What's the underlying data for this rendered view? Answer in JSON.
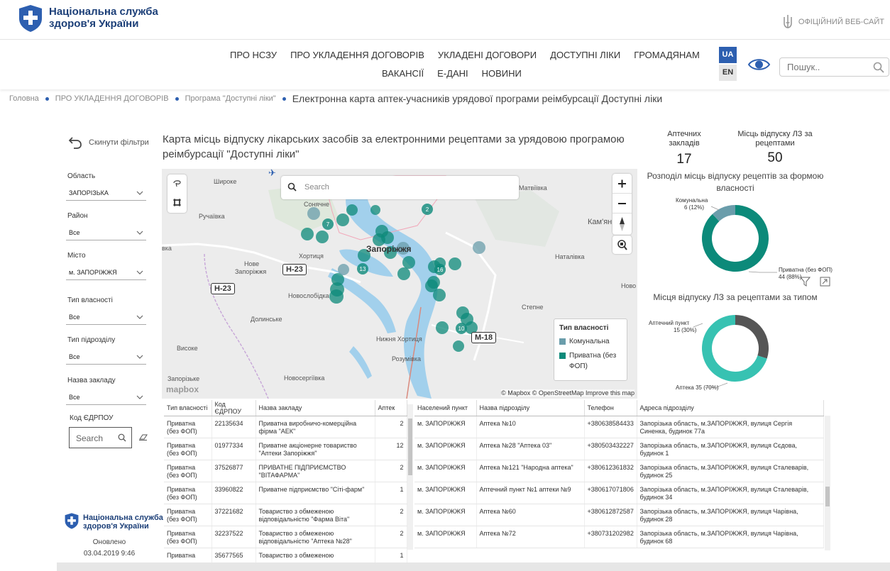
{
  "header": {
    "logo_line1": "Національна служба",
    "logo_line2": "здоров'я України",
    "official_site": "ОФІЦІЙНИЙ ВЕБ-САЙТ"
  },
  "nav": {
    "row1": [
      "ПРО НСЗУ",
      "ПРО УКЛАДЕННЯ ДОГОВОРІВ",
      "УКЛАДЕНІ ДОГОВОРИ",
      "ДОСТУПНІ ЛІКИ",
      "ГРОМАДЯНАМ"
    ],
    "row2": [
      "ВАКАНСІЇ",
      "Е-ДАНІ",
      "НОВИНИ"
    ],
    "lang_ua": "UA",
    "lang_en": "EN",
    "search_placeholder": "Пошук.."
  },
  "breadcrumb": {
    "home": "Головна",
    "section": "ПРО УКЛАДЕННЯ ДОГОВОРІВ",
    "program": "Програма \"Доступні ліки\"",
    "current": "Електронна карта аптек-учасників урядової програми реімбурсації Доступні ліки"
  },
  "filters": {
    "reset": "Скинути фільтри",
    "oblast_label": "Область",
    "oblast_value": "ЗАПОРІЗЬКА",
    "rayon_label": "Район",
    "rayon_value": "Все",
    "misto_label": "Місто",
    "misto_value": "м. ЗАПОРІЖЖЯ",
    "vlasnist_label": "Тип власності",
    "vlasnist_value": "Все",
    "pidrozdil_label": "Тип підрозділу",
    "pidrozdil_value": "Все",
    "zaklad_label": "Назва закладу",
    "zaklad_value": "Все",
    "edrpou_label": "Код ЄДРПОУ",
    "edrpou_placeholder": "Search"
  },
  "footer_left": {
    "logo_line1": "Національна служба",
    "logo_line2": "здоров'я України",
    "updated_label": "Оновлено",
    "updated_value": "03.04.2019 9:46"
  },
  "map": {
    "title": "Карта місць відпуску лікарських засобів за електронними рецептами за урядовою програмою реімбурсації \"Доступні ліки\"",
    "search_placeholder": "Search",
    "labels": {
      "shyroke": "Широке",
      "ruchaivka": "Ручаївка",
      "soniachne": "Сонячне",
      "matviivka": "Матвіївка",
      "kamyan": "Кам'ян",
      "khortytsia": "Хортиця",
      "nove_zaporizhzhia_1": "Нове",
      "nove_zaporizhzhia_2": "Запоріжжя",
      "zaporizhzhia_city": "Запоріжжя",
      "natalivka": "Наталівка",
      "novoslobidka": "Новослобідка",
      "dolynske": "Долинське",
      "stepne": "Степне",
      "nyzhnia_khortytsia": "Нижня Хортиця",
      "vysoke": "Високе",
      "rozumivka": "Розумівка",
      "zaporizke": "Запорізьке",
      "novoserhiivka": "Новосергіївка",
      "kva": "вка",
      "novo": "Ново"
    },
    "roads": [
      "Н-23",
      "Н-23",
      "М-18"
    ],
    "clusters": [
      "2",
      "7",
      "13",
      "16",
      "10"
    ],
    "attribution": "© Mapbox © OpenStreetMap  Improve this map",
    "mapbox_logo": "mapbox",
    "legend_title": "Тип власності",
    "legend_items": [
      "Комунальна",
      "Приватна (без ФОП)"
    ],
    "colors": {
      "communal": "#6a9dab",
      "private": "#0c8a7a",
      "water": "#a2d0ec",
      "land": "#ececec"
    }
  },
  "stats": {
    "pharmacies_label": "Аптечних закладів",
    "pharmacies_value": "17",
    "points_label": "Місць відпуску ЛЗ за рецептами",
    "points_value": "50"
  },
  "chart_data": [
    {
      "type": "pie",
      "title": "Розподіл місць відпуску рецептів за формою власності",
      "categories": [
        "Комунальна",
        "Приватна (без ФОП)"
      ],
      "values": [
        6,
        44
      ],
      "percents": [
        "12%",
        "88%"
      ],
      "labels": [
        "6 (12%)",
        "44 (88%)"
      ],
      "colors": [
        "#6a9dab",
        "#0c8a7a"
      ]
    },
    {
      "type": "pie",
      "title": "Місця відпуску ЛЗ за рецептами за типом",
      "categories": [
        "Аптечний пункт",
        "Аптека"
      ],
      "values": [
        15,
        35
      ],
      "percents": [
        "30%",
        "70%"
      ],
      "labels": [
        "15 (30%)",
        "35 (70%)"
      ],
      "colors": [
        "#555555",
        "#37c2b2"
      ]
    }
  ],
  "left_table": {
    "headers": [
      "Тип власності",
      "Код ЄДРПОУ",
      "Назва закладу",
      "Аптек"
    ],
    "rows": [
      [
        "Приватна (без ФОП)",
        "22135634",
        "Приватна виробничо-комерційна фірма \"АЕК\"",
        "2"
      ],
      [
        "Приватна (без ФОП)",
        "01977334",
        "Приватне акціонерне товариство \"Аптеки Запоріжжя\"",
        "12"
      ],
      [
        "Приватна (без ФОП)",
        "37526877",
        "ПРИВАТНЕ ПІДПРИЄМСТВО \"ВІТАФАРМА\"",
        "2"
      ],
      [
        "Приватна (без ФОП)",
        "33960822",
        "Приватне підприємство \"Сіті-фарм\"",
        "1"
      ],
      [
        "Приватна (без ФОП)",
        "37221682",
        "Товариство з обмеженою відповідальністю \"Фарма Віта\"",
        "2"
      ],
      [
        "Приватна (без ФОП)",
        "32237522",
        "Товариство з обмеженою відповідальністю \"Аптека №28\"",
        "2"
      ],
      [
        "Приватна",
        "35677565",
        "Товариство з обмеженою",
        "1"
      ]
    ]
  },
  "right_table": {
    "headers": [
      "Населений пункт",
      "Назва підрозділу",
      "Телефон",
      "Адреса підрозділу"
    ],
    "rows": [
      [
        "м. ЗАПОРІЖЖЯ",
        "Аптека №10",
        "+380638584433",
        "Запорізька область, м.ЗАПОРІЖЖЯ, вулиця Сергія Синенка, будинок 77а"
      ],
      [
        "м. ЗАПОРІЖЖЯ",
        "Аптека №28 \"Аптека 03\"",
        "+380503432227",
        "Запорізька область, м.ЗАПОРІЖЖЯ, вулиця Сєдова, будинок 1"
      ],
      [
        "м. ЗАПОРІЖЖЯ",
        "Аптека №121 \"Народна аптека\"",
        "+380612361832",
        "Запорізька область, м.ЗАПОРІЖЖЯ, вулиця Сталеварів, будинок 25"
      ],
      [
        "м. ЗАПОРІЖЖЯ",
        "Аптечний пункт №1 аптеки №9",
        "+380617071806",
        "Запорізька область, м.ЗАПОРІЖЖЯ, вулиця Сталеварів, будинок 34"
      ],
      [
        "м. ЗАПОРІЖЖЯ",
        "Аптека №60",
        "+380612872587",
        "Запорізька область, м.ЗАПОРІЖЖЯ, вулиця Чарівна, будинок 28"
      ],
      [
        "м. ЗАПОРІЖЖЯ",
        "Аптека №72",
        "+380731202982",
        "Запорізька область, м.ЗАПОРІЖЖЯ, вулиця Чарівна, будинок 68"
      ]
    ]
  }
}
